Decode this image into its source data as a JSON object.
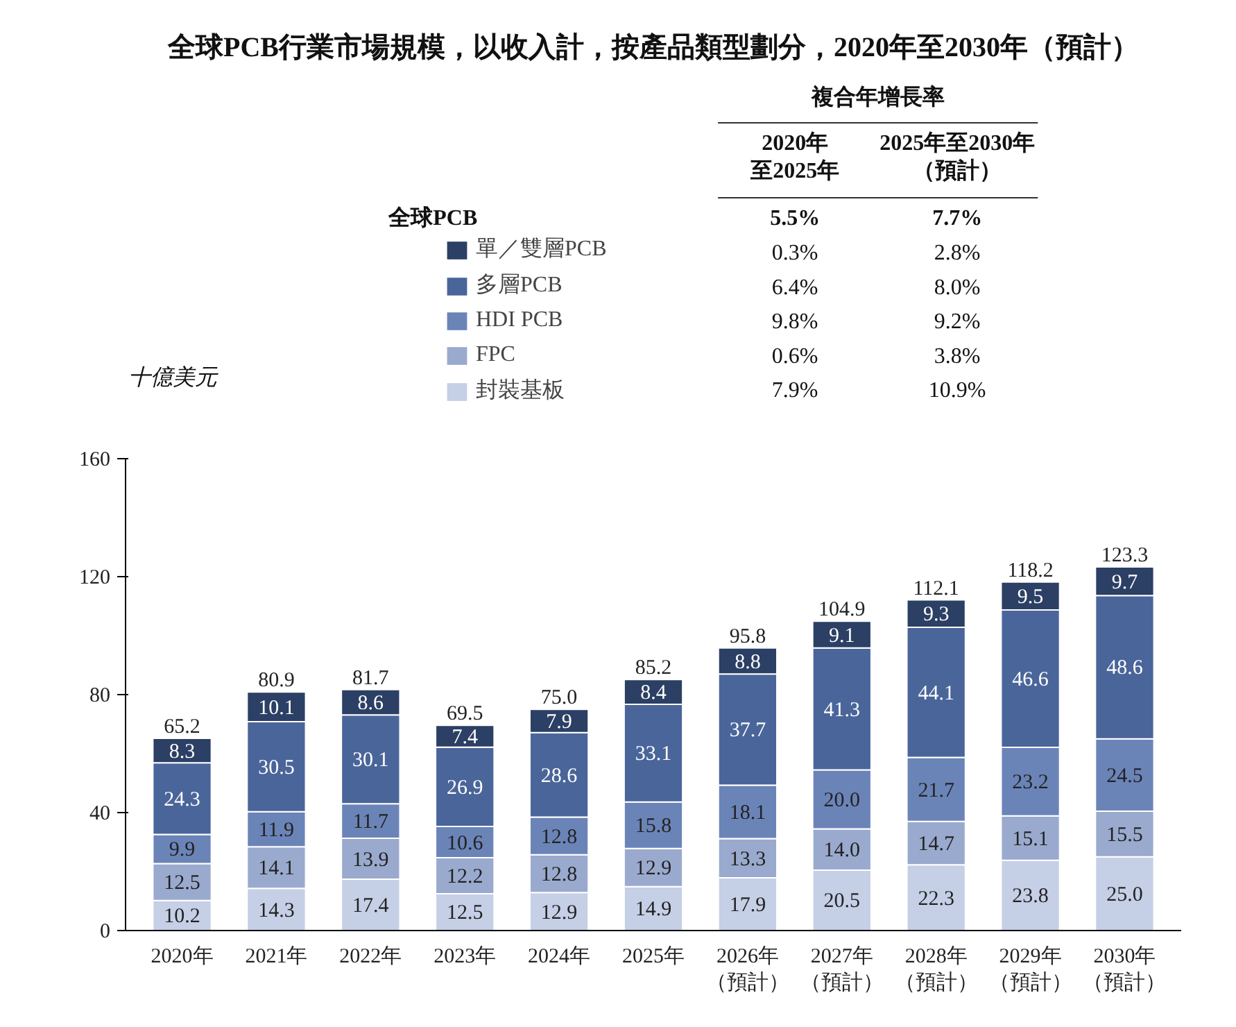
{
  "chart_data": {
    "type": "bar",
    "stacked": true,
    "title": "全球PCB行業市場規模，以收入計，按產品類型劃分，2020年至2030年（預計）",
    "ylabel": "十億美元",
    "categories": [
      "2020年",
      "2021年",
      "2022年",
      "2023年",
      "2024年",
      "2025年",
      "2026年（預計）",
      "2027年（預計）",
      "2028年（預計）",
      "2029年（預計）",
      "2030年（預計）"
    ],
    "series": [
      {
        "name": "封裝基板",
        "color": "#c5cfe6",
        "values": [
          10.2,
          14.3,
          17.4,
          12.5,
          12.9,
          14.9,
          17.9,
          20.5,
          22.3,
          23.8,
          25.0
        ],
        "value_labels": [
          "10.2",
          "14.3",
          "17.4",
          "12.5",
          "12.9",
          "14.9",
          "17.9",
          "20.5",
          "22.3",
          "23.8",
          "25.0"
        ]
      },
      {
        "name": "FPC",
        "color": "#9aaace",
        "values": [
          12.5,
          14.1,
          13.9,
          12.2,
          12.8,
          12.9,
          13.3,
          14.0,
          14.7,
          15.1,
          15.5
        ],
        "value_labels": [
          "12.5",
          "14.1",
          "13.9",
          "12.2",
          "12.8",
          "12.9",
          "13.3",
          "14.0",
          "14.7",
          "15.1",
          "15.5"
        ]
      },
      {
        "name": "HDI PCB",
        "color": "#6b84b8",
        "values": [
          9.9,
          11.9,
          11.7,
          10.6,
          12.8,
          15.8,
          18.1,
          20.0,
          21.7,
          23.2,
          24.5
        ],
        "value_labels": [
          "9.9",
          "11.9",
          "11.7",
          "10.6",
          "12.8",
          "15.8",
          "18.1",
          "20.0",
          "21.7",
          "23.2",
          "24.5"
        ]
      },
      {
        "name": "多層PCB",
        "color": "#4a659a",
        "values": [
          24.3,
          30.5,
          30.1,
          26.9,
          28.6,
          33.1,
          37.7,
          41.3,
          44.1,
          46.6,
          48.6
        ],
        "value_labels": [
          "24.3",
          "30.5",
          "30.1",
          "26.9",
          "28.6",
          "33.1",
          "37.7",
          "41.3",
          "44.1",
          "46.6",
          "48.6"
        ]
      },
      {
        "name": "單／雙層PCB",
        "color": "#2c3f64",
        "values": [
          8.3,
          10.1,
          8.6,
          7.4,
          7.9,
          8.4,
          8.8,
          9.1,
          9.3,
          9.5,
          9.7
        ],
        "value_labels": [
          "8.3",
          "10.1",
          "8.6",
          "7.4",
          "7.9",
          "8.4",
          "8.8",
          "9.1",
          "9.3",
          "9.5",
          "9.7"
        ]
      }
    ],
    "totals": [
      "65.2",
      "80.9",
      "81.7",
      "69.5",
      "75.0",
      "85.2",
      "95.8",
      "104.9",
      "112.1",
      "118.2",
      "123.3"
    ],
    "ylim": [
      0,
      160
    ],
    "yticks": [
      0,
      40,
      80,
      120,
      160
    ],
    "grid": false,
    "legend": "top",
    "annotations": [
      "複合年增長率",
      "2020年至2025年",
      "2025年至2030年（預計）",
      "全球PCB",
      "5.5%",
      "7.7%",
      "0.3%",
      "2.8%",
      "6.4%",
      "8.0%",
      "9.8%",
      "9.2%",
      "0.6%",
      "3.8%",
      "7.9%",
      "10.9%"
    ]
  }
}
